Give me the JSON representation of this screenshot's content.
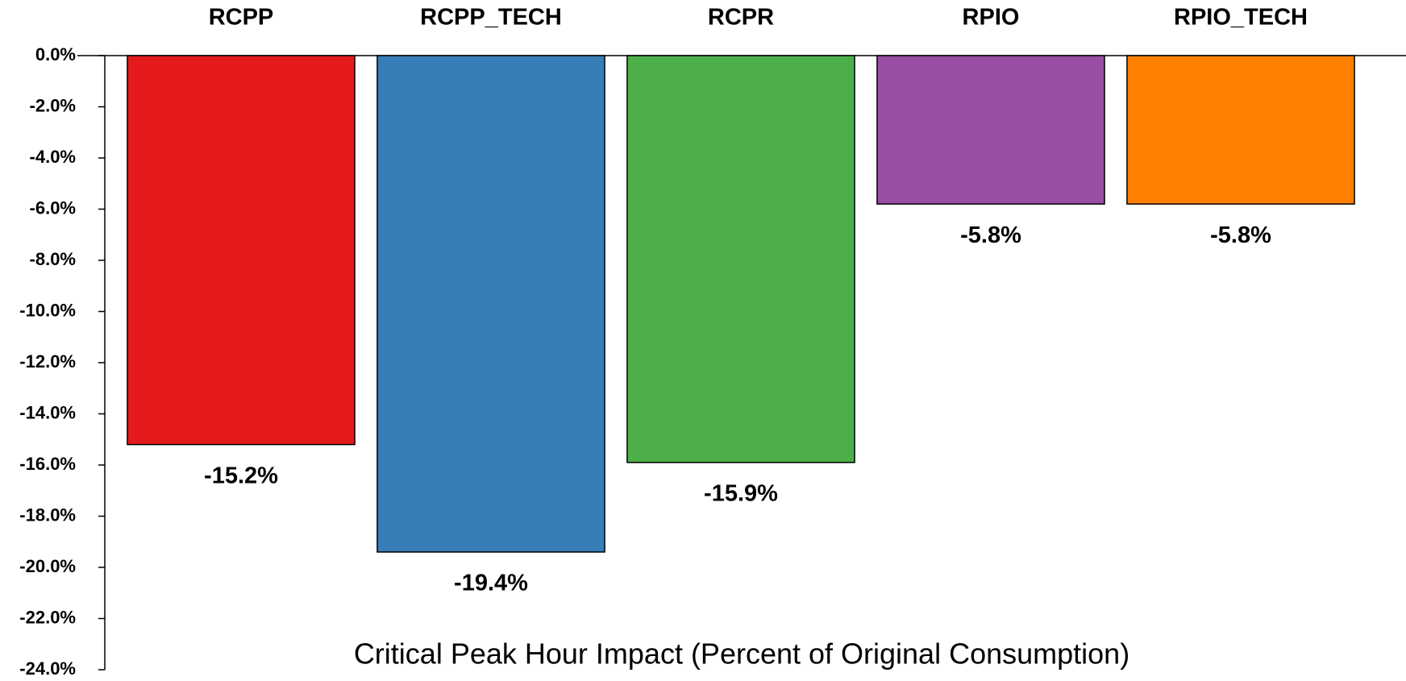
{
  "chart_data": {
    "type": "bar",
    "title": "Critical Peak Hour Impact (Percent of Original Consumption)",
    "categories": [
      "RCPP",
      "RCPP_TECH",
      "RCPR",
      "RPIO",
      "RPIO_TECH"
    ],
    "values": [
      -15.2,
      -19.4,
      -15.9,
      -5.8,
      -5.8
    ],
    "value_labels": [
      "-15.2%",
      "-19.4%",
      "-15.9%",
      "-5.8%",
      "-5.8%"
    ],
    "colors": [
      "#e41a1c",
      "#377eb8",
      "#4daf4a",
      "#984ea3",
      "#ff7f00"
    ],
    "ylim": [
      -24,
      0
    ],
    "yticks": [
      {
        "value": 0,
        "label": "0.0%"
      },
      {
        "value": -2,
        "label": "-2.0%"
      },
      {
        "value": -4,
        "label": "-4.0%"
      },
      {
        "value": -6,
        "label": "-6.0%"
      },
      {
        "value": -8,
        "label": "-8.0%"
      },
      {
        "value": -10,
        "label": "-10.0%"
      },
      {
        "value": -12,
        "label": "-12.0%"
      },
      {
        "value": -14,
        "label": "-14.0%"
      },
      {
        "value": -16,
        "label": "-16.0%"
      },
      {
        "value": -18,
        "label": "-18.0%"
      },
      {
        "value": -20,
        "label": "-20.0%"
      },
      {
        "value": -22,
        "label": "-22.0%"
      },
      {
        "value": -24,
        "label": "-24.0%"
      }
    ],
    "grid": false
  }
}
